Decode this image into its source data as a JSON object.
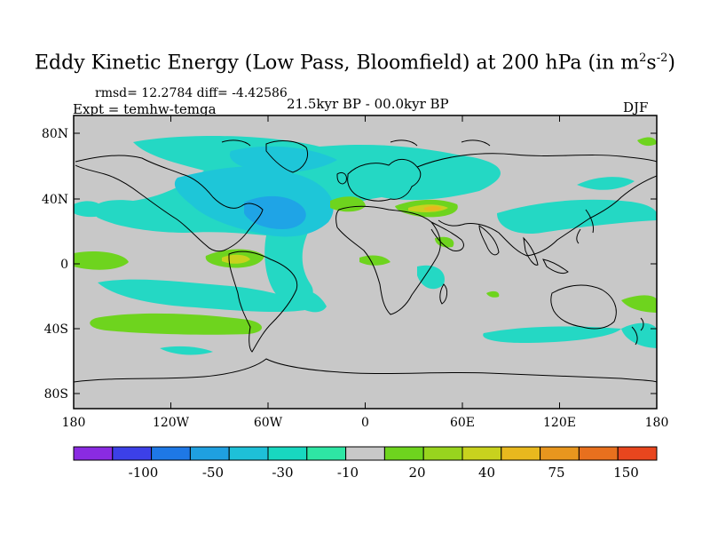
{
  "title_main": "Eddy Kinetic Energy (Low Pass, Bloomfield) at 200 hPa (in m",
  "title_sup1": "2",
  "title_mid": "s",
  "title_sup2": "-2",
  "title_end": ")",
  "rmsd_text": "rmsd= 12.2784 diff= -4.42586",
  "expt_text": "Expt = temhw-temga",
  "period_text": "21.5kyr BP - 00.0kyr BP",
  "season_text": "DJF",
  "lat_labels": [
    "80N",
    "40N",
    "0",
    "40S",
    "80S"
  ],
  "lon_labels": [
    "180",
    "120W",
    "60W",
    "0",
    "60E",
    "120E",
    "180"
  ],
  "colorbar_labels": [
    "-100",
    "-50",
    "-30",
    "-10",
    "20",
    "40",
    "75",
    "150"
  ],
  "colorbar_colors": [
    "#8a2be2",
    "#3c40e8",
    "#1e78e6",
    "#1fa0e0",
    "#1ec0d8",
    "#18d8c0",
    "#2ee6a4",
    "#c8c8c8",
    "#6ed41e",
    "#98d41e",
    "#c8d21e",
    "#e8b81e",
    "#e8961e",
    "#e8701e",
    "#e8461e"
  ],
  "map_colors": {
    "background": "#c8c8c8",
    "neg_light": "#24d8c4",
    "neg_mid": "#1ec6d8",
    "neg_dark": "#1fa4e6",
    "neg_deep": "#2a86e4",
    "pos_light": "#6ed41e",
    "pos_mid": "#c8d21e",
    "pos_high": "#e8b81e"
  }
}
